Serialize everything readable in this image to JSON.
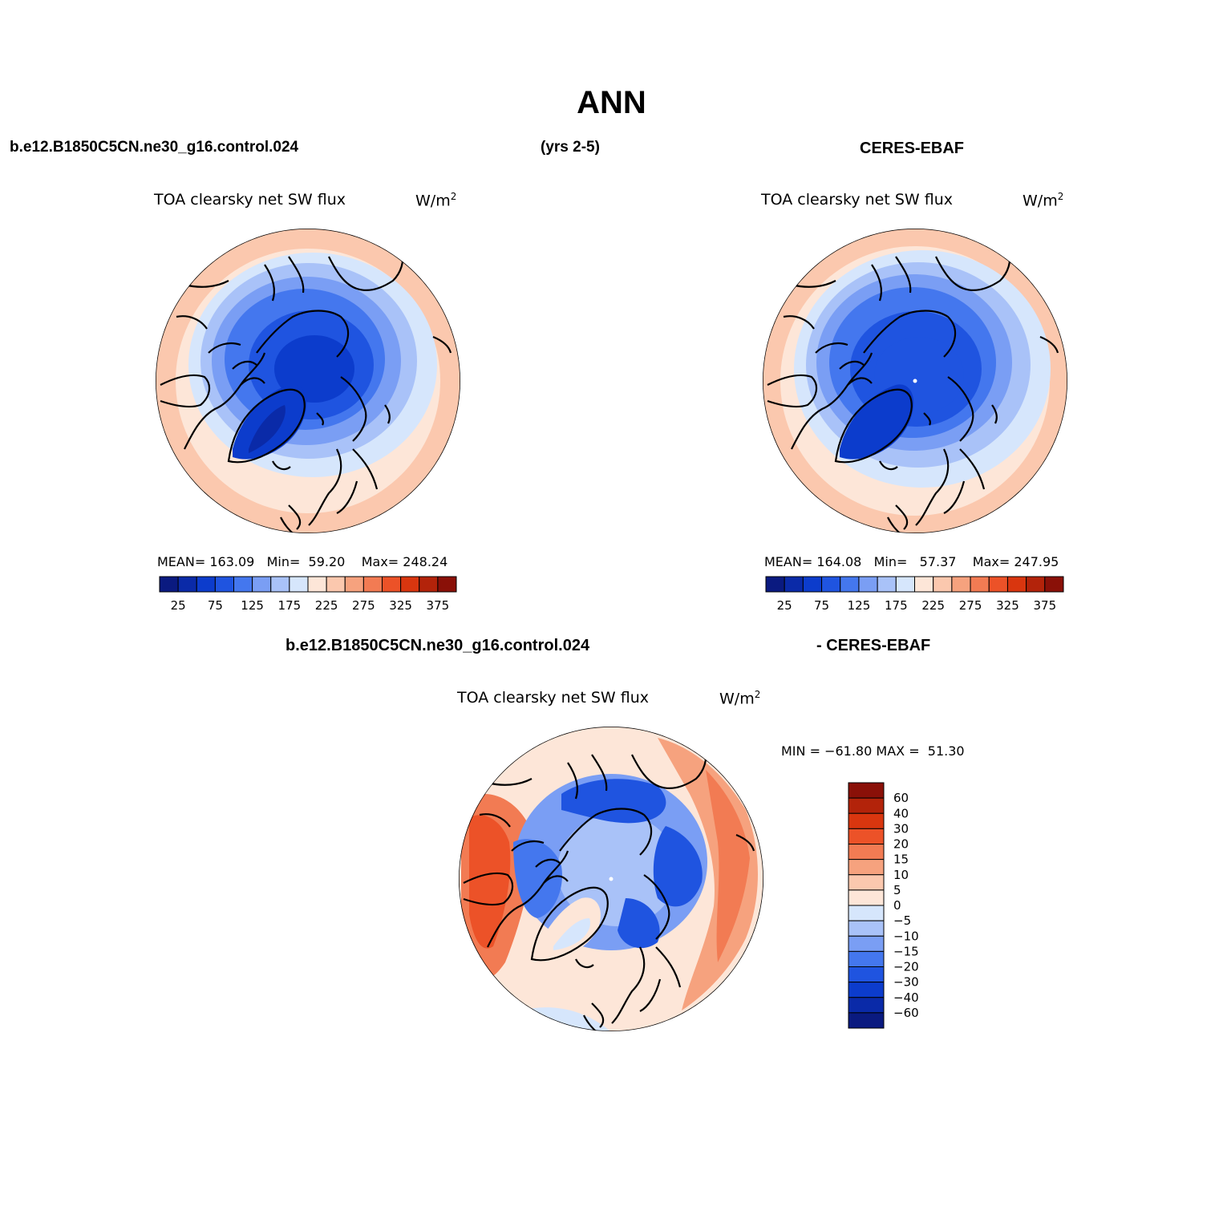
{
  "main_title": "ANN",
  "header": {
    "case_name": "b.e12.B1850C5CN.ne30_g16.control.024",
    "years": "(yrs 2-5)",
    "obs_name": "CERES-EBAF"
  },
  "panels": [
    {
      "title": "TOA clearsky net SW flux",
      "units": "W/m",
      "units_exp": "2",
      "stats": {
        "mean_label": "MEAN=",
        "mean": "163.09",
        "min_label": "Min=",
        "min": "59.20",
        "max_label": "Max=",
        "max": "248.24"
      }
    },
    {
      "title": "TOA clearsky net SW flux",
      "units": "W/m",
      "units_exp": "2",
      "stats": {
        "mean_label": "MEAN=",
        "mean": "164.08",
        "min_label": "Min=",
        "min": "57.37",
        "max_label": "Max=",
        "max": "247.95"
      }
    }
  ],
  "diff_panel": {
    "case_label": "b.e12.B1850C5CN.ne30_g16.control.024",
    "obs_label": "- CERES-EBAF",
    "title": "TOA clearsky net SW flux",
    "units": "W/m",
    "units_exp": "2",
    "min_label": "MIN =",
    "min": "−61.80",
    "max_label": "MAX =",
    "max": "51.30"
  },
  "colorbar_main": {
    "colors": [
      "#0a1a80",
      "#0a2aa8",
      "#0c3ccc",
      "#1f54e0",
      "#4477ee",
      "#7a9ef4",
      "#a9c2f8",
      "#d6e6fc",
      "#fde6d8",
      "#fbc8ae",
      "#f6a27e",
      "#f27b53",
      "#ec5228",
      "#d9360f",
      "#b3230a",
      "#8a1008"
    ],
    "tick_labels": [
      "25",
      "75",
      "125",
      "175",
      "225",
      "275",
      "325",
      "375"
    ]
  },
  "colorbar_diff": {
    "colors": [
      "#8a1008",
      "#b3230a",
      "#d9360f",
      "#ec5228",
      "#f27b53",
      "#f6a27e",
      "#fbc8ae",
      "#fde6d8",
      "#d6e6fc",
      "#a9c2f8",
      "#7a9ef4",
      "#4477ee",
      "#1f54e0",
      "#0c3ccc",
      "#0a2aa8",
      "#0a1a80"
    ],
    "tick_labels": [
      "60",
      "40",
      "30",
      "20",
      "15",
      "10",
      "5",
      "0",
      "−5",
      "−10",
      "−15",
      "−20",
      "−30",
      "−40",
      "−60"
    ]
  },
  "colors": {
    "deep_blue": "#0c3ccc",
    "mid_blue": "#4477ee",
    "light_blue": "#a9c2f8",
    "pale_blue": "#d6e6fc",
    "pale_red": "#fde6d8",
    "light_red": "#fbc8ae",
    "orange": "#ec5228"
  }
}
